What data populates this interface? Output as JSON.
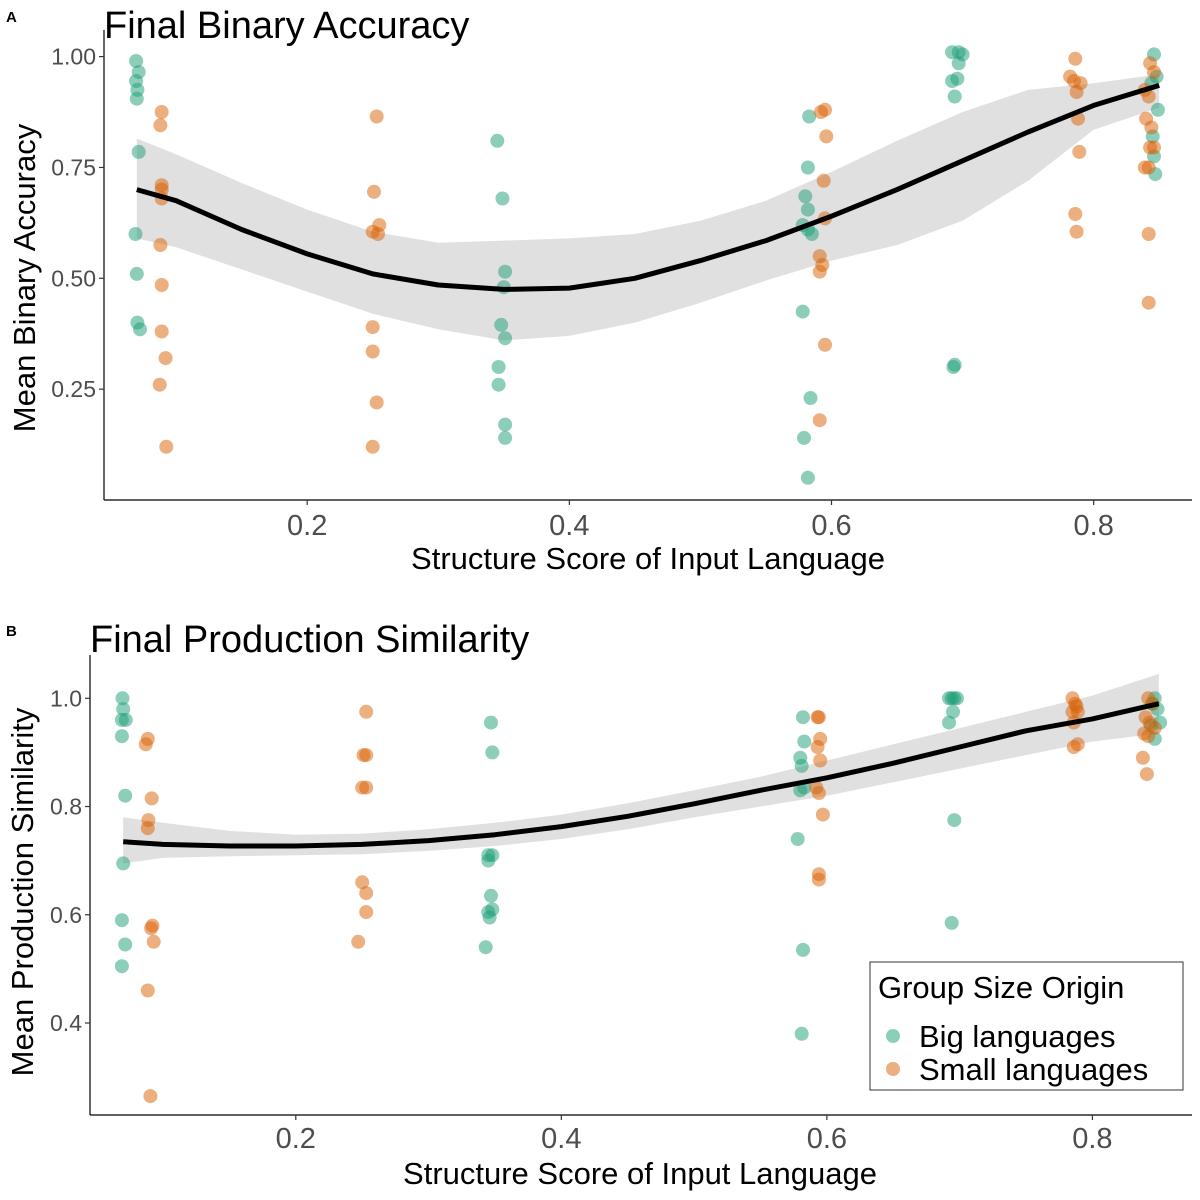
{
  "colors": {
    "big": "#1b9e77",
    "small": "#d95f02",
    "band": "#e0e0e0",
    "line": "#000000"
  },
  "legend": {
    "title": "Group Size Origin",
    "entries": [
      {
        "label": "Big languages",
        "color": "#1b9e77"
      },
      {
        "label": "Small languages",
        "color": "#d95f02"
      }
    ]
  },
  "chart_data": [
    {
      "panel": "A",
      "type": "scatter",
      "title": "Final Binary Accuracy",
      "xlabel": "Structure Score of Input Language",
      "ylabel": "Mean Binary Accuracy",
      "xlim": [
        0.045,
        0.875
      ],
      "ylim": [
        0.0,
        1.06
      ],
      "xticks": [
        "0.2",
        "0.4",
        "0.6",
        "0.8"
      ],
      "xtick_values": [
        0.2,
        0.4,
        0.6,
        0.8
      ],
      "yticks": [
        "0.25",
        "0.50",
        "0.75",
        "1.00"
      ],
      "ytick_values": [
        0.25,
        0.5,
        0.75,
        1.0
      ],
      "grid": false,
      "series": [
        {
          "name": "Big languages",
          "points": [
            [
              0.0695,
              0.99
            ],
            [
              0.0695,
              0.945
            ],
            [
              0.0715,
              0.965
            ],
            [
              0.0705,
              0.925
            ],
            [
              0.07,
              0.905
            ],
            [
              0.0715,
              0.785
            ],
            [
              0.069,
              0.6
            ],
            [
              0.07,
              0.51
            ],
            [
              0.0705,
              0.4
            ],
            [
              0.0725,
              0.385
            ],
            [
              0.345,
              0.81
            ],
            [
              0.349,
              0.68
            ],
            [
              0.351,
              0.515
            ],
            [
              0.35,
              0.48
            ],
            [
              0.348,
              0.395
            ],
            [
              0.351,
              0.365
            ],
            [
              0.346,
              0.3
            ],
            [
              0.346,
              0.26
            ],
            [
              0.351,
              0.17
            ],
            [
              0.351,
              0.14
            ],
            [
              0.583,
              0.865
            ],
            [
              0.582,
              0.75
            ],
            [
              0.58,
              0.685
            ],
            [
              0.582,
              0.655
            ],
            [
              0.578,
              0.62
            ],
            [
              0.582,
              0.61
            ],
            [
              0.585,
              0.6
            ],
            [
              0.578,
              0.425
            ],
            [
              0.584,
              0.23
            ],
            [
              0.579,
              0.14
            ],
            [
              0.582,
              0.05
            ],
            [
              0.692,
              1.01
            ],
            [
              0.697,
              1.01
            ],
            [
              0.7,
              1.005
            ],
            [
              0.697,
              0.985
            ],
            [
              0.696,
              0.95
            ],
            [
              0.692,
              0.945
            ],
            [
              0.694,
              0.91
            ],
            [
              0.694,
              0.305
            ],
            [
              0.693,
              0.3
            ],
            [
              0.846,
              1.005
            ],
            [
              0.848,
              0.955
            ],
            [
              0.844,
              0.94
            ],
            [
              0.849,
              0.88
            ],
            [
              0.845,
              0.82
            ],
            [
              0.846,
              0.775
            ],
            [
              0.847,
              0.735
            ]
          ]
        },
        {
          "name": "Small languages",
          "points": [
            [
              0.089,
              0.875
            ],
            [
              0.088,
              0.845
            ],
            [
              0.089,
              0.71
            ],
            [
              0.089,
              0.7
            ],
            [
              0.089,
              0.68
            ],
            [
              0.088,
              0.575
            ],
            [
              0.089,
              0.485
            ],
            [
              0.089,
              0.38
            ],
            [
              0.092,
              0.32
            ],
            [
              0.0875,
              0.26
            ],
            [
              0.0925,
              0.12
            ],
            [
              0.253,
              0.865
            ],
            [
              0.251,
              0.695
            ],
            [
              0.255,
              0.62
            ],
            [
              0.25,
              0.605
            ],
            [
              0.254,
              0.6
            ],
            [
              0.25,
              0.39
            ],
            [
              0.25,
              0.335
            ],
            [
              0.253,
              0.22
            ],
            [
              0.25,
              0.12
            ],
            [
              0.595,
              0.88
            ],
            [
              0.592,
              0.875
            ],
            [
              0.596,
              0.82
            ],
            [
              0.594,
              0.72
            ],
            [
              0.595,
              0.635
            ],
            [
              0.591,
              0.55
            ],
            [
              0.593,
              0.53
            ],
            [
              0.591,
              0.515
            ],
            [
              0.595,
              0.35
            ],
            [
              0.591,
              0.18
            ],
            [
              0.786,
              0.995
            ],
            [
              0.782,
              0.955
            ],
            [
              0.785,
              0.945
            ],
            [
              0.79,
              0.94
            ],
            [
              0.787,
              0.92
            ],
            [
              0.788,
              0.86
            ],
            [
              0.789,
              0.785
            ],
            [
              0.786,
              0.645
            ],
            [
              0.787,
              0.605
            ],
            [
              0.843,
              0.985
            ],
            [
              0.846,
              0.965
            ],
            [
              0.839,
              0.925
            ],
            [
              0.842,
              0.91
            ],
            [
              0.84,
              0.86
            ],
            [
              0.844,
              0.84
            ],
            [
              0.843,
              0.795
            ],
            [
              0.846,
              0.795
            ],
            [
              0.839,
              0.75
            ],
            [
              0.842,
              0.75
            ],
            [
              0.842,
              0.6
            ],
            [
              0.842,
              0.445
            ]
          ]
        }
      ],
      "fit": {
        "x": [
          0.07,
          0.1,
          0.15,
          0.2,
          0.25,
          0.3,
          0.35,
          0.4,
          0.45,
          0.5,
          0.55,
          0.6,
          0.65,
          0.7,
          0.75,
          0.8,
          0.85
        ],
        "y": [
          0.7,
          0.675,
          0.61,
          0.555,
          0.51,
          0.485,
          0.475,
          0.478,
          0.5,
          0.54,
          0.585,
          0.64,
          0.7,
          0.765,
          0.83,
          0.89,
          0.935
        ],
        "lower": [
          0.59,
          0.57,
          0.52,
          0.47,
          0.42,
          0.385,
          0.36,
          0.37,
          0.4,
          0.445,
          0.495,
          0.54,
          0.575,
          0.63,
          0.72,
          0.835,
          0.885
        ],
        "upper": [
          0.815,
          0.78,
          0.715,
          0.655,
          0.605,
          0.58,
          0.585,
          0.59,
          0.6,
          0.63,
          0.675,
          0.74,
          0.81,
          0.875,
          0.925,
          0.94,
          0.96
        ]
      },
      "legend": "none"
    },
    {
      "panel": "B",
      "type": "scatter",
      "title": "Final Production Similarity",
      "xlabel": "Structure Score of Input Language",
      "ylabel": "Mean Production Similarity",
      "xlim": [
        0.045,
        0.875
      ],
      "ylim": [
        0.23,
        1.08
      ],
      "xticks": [
        "0.2",
        "0.4",
        "0.6",
        "0.8"
      ],
      "xtick_values": [
        0.2,
        0.4,
        0.6,
        0.8
      ],
      "yticks": [
        "0.4",
        "0.6",
        "0.8",
        "1.0"
      ],
      "ytick_values": [
        0.4,
        0.6,
        0.8,
        1.0
      ],
      "grid": false,
      "series": [
        {
          "name": "Big languages",
          "points": [
            [
              0.0695,
              1.0
            ],
            [
              0.07,
              0.98
            ],
            [
              0.069,
              0.96
            ],
            [
              0.072,
              0.96
            ],
            [
              0.069,
              0.93
            ],
            [
              0.0715,
              0.82
            ],
            [
              0.07,
              0.695
            ],
            [
              0.069,
              0.59
            ],
            [
              0.0715,
              0.545
            ],
            [
              0.069,
              0.505
            ],
            [
              0.347,
              0.955
            ],
            [
              0.348,
              0.9
            ],
            [
              0.345,
              0.71
            ],
            [
              0.348,
              0.71
            ],
            [
              0.345,
              0.7
            ],
            [
              0.347,
              0.635
            ],
            [
              0.348,
              0.61
            ],
            [
              0.345,
              0.605
            ],
            [
              0.346,
              0.595
            ],
            [
              0.343,
              0.54
            ],
            [
              0.582,
              0.965
            ],
            [
              0.583,
              0.92
            ],
            [
              0.58,
              0.89
            ],
            [
              0.581,
              0.875
            ],
            [
              0.583,
              0.835
            ],
            [
              0.58,
              0.83
            ],
            [
              0.578,
              0.74
            ],
            [
              0.582,
              0.535
            ],
            [
              0.581,
              0.38
            ],
            [
              0.692,
              1.0
            ],
            [
              0.694,
              1.0
            ],
            [
              0.696,
              1.0
            ],
            [
              0.698,
              1.0
            ],
            [
              0.692,
              0.955
            ],
            [
              0.695,
              0.975
            ],
            [
              0.696,
              0.775
            ],
            [
              0.694,
              0.585
            ],
            [
              0.847,
              1.0
            ],
            [
              0.845,
              0.99
            ],
            [
              0.849,
              0.98
            ],
            [
              0.844,
              0.95
            ],
            [
              0.847,
              0.925
            ],
            [
              0.851,
              0.955
            ]
          ]
        },
        {
          "name": "Small languages",
          "points": [
            [
              0.0885,
              0.925
            ],
            [
              0.087,
              0.915
            ],
            [
              0.0915,
              0.815
            ],
            [
              0.089,
              0.775
            ],
            [
              0.0885,
              0.76
            ],
            [
              0.092,
              0.58
            ],
            [
              0.091,
              0.575
            ],
            [
              0.093,
              0.55
            ],
            [
              0.0885,
              0.46
            ],
            [
              0.0905,
              0.265
            ],
            [
              0.253,
              0.975
            ],
            [
              0.251,
              0.895
            ],
            [
              0.253,
              0.895
            ],
            [
              0.25,
              0.835
            ],
            [
              0.253,
              0.835
            ],
            [
              0.25,
              0.66
            ],
            [
              0.253,
              0.64
            ],
            [
              0.253,
              0.605
            ],
            [
              0.247,
              0.55
            ],
            [
              0.594,
              0.965
            ],
            [
              0.593,
              0.965
            ],
            [
              0.595,
              0.925
            ],
            [
              0.593,
              0.91
            ],
            [
              0.595,
              0.885
            ],
            [
              0.592,
              0.835
            ],
            [
              0.594,
              0.825
            ],
            [
              0.597,
              0.785
            ],
            [
              0.594,
              0.675
            ],
            [
              0.594,
              0.665
            ],
            [
              0.785,
              1.0
            ],
            [
              0.787,
              0.99
            ],
            [
              0.788,
              0.985
            ],
            [
              0.785,
              0.975
            ],
            [
              0.789,
              0.975
            ],
            [
              0.786,
              0.955
            ],
            [
              0.786,
              0.91
            ],
            [
              0.789,
              0.915
            ],
            [
              0.842,
              1.0
            ],
            [
              0.845,
              0.99
            ],
            [
              0.84,
              0.965
            ],
            [
              0.843,
              0.955
            ],
            [
              0.847,
              0.945
            ],
            [
              0.839,
              0.935
            ],
            [
              0.842,
              0.93
            ],
            [
              0.838,
              0.89
            ],
            [
              0.841,
              0.86
            ]
          ]
        }
      ],
      "fit": {
        "x": [
          0.07,
          0.1,
          0.15,
          0.2,
          0.25,
          0.3,
          0.35,
          0.4,
          0.45,
          0.5,
          0.55,
          0.6,
          0.65,
          0.7,
          0.75,
          0.8,
          0.85
        ],
        "y": [
          0.735,
          0.73,
          0.727,
          0.727,
          0.73,
          0.737,
          0.748,
          0.763,
          0.782,
          0.805,
          0.83,
          0.853,
          0.88,
          0.91,
          0.94,
          0.962,
          0.99
        ],
        "lower": [
          0.695,
          0.705,
          0.708,
          0.71,
          0.712,
          0.718,
          0.727,
          0.74,
          0.758,
          0.78,
          0.8,
          0.82,
          0.845,
          0.87,
          0.895,
          0.92,
          0.935
        ],
        "upper": [
          0.78,
          0.77,
          0.755,
          0.748,
          0.75,
          0.758,
          0.77,
          0.785,
          0.806,
          0.83,
          0.855,
          0.885,
          0.915,
          0.945,
          0.975,
          1.005,
          1.045
        ]
      },
      "legend": "bottom-right"
    }
  ]
}
